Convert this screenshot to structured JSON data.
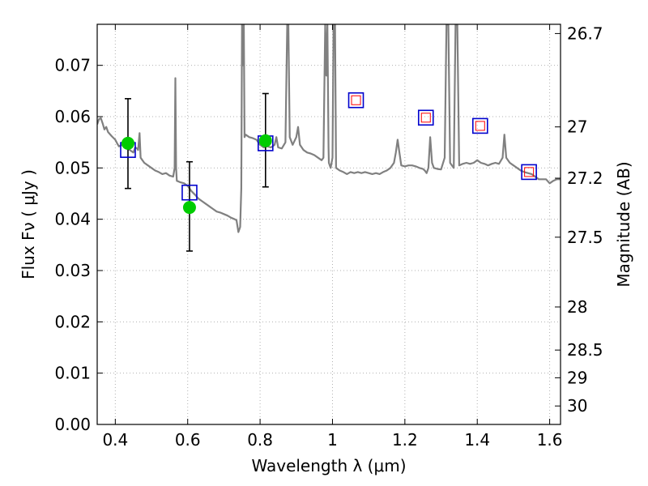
{
  "chart_data": {
    "type": "line",
    "xlabel": "Wavelength  λ (μm)",
    "ylabel": "Flux  Fν  ( μJy )",
    "ylabel_right": "Magnitude (AB)",
    "xlim": [
      0.35,
      1.63
    ],
    "ylim": [
      0,
      0.078
    ],
    "grid": true,
    "x_ticks": [
      0.4,
      0.6,
      0.8,
      1.0,
      1.2,
      1.4,
      1.6
    ],
    "x_tick_labels": [
      "0.4",
      "0.6",
      "0.8",
      "1",
      "1.2",
      "1.4",
      "1.6"
    ],
    "y_ticks": [
      0,
      0.01,
      0.02,
      0.03,
      0.04,
      0.05,
      0.06,
      0.07
    ],
    "y_tick_labels": [
      "0.00",
      "0.01",
      "0.02",
      "0.03",
      "0.04",
      "0.05",
      "0.06",
      "0.07"
    ],
    "mag_ticks": [
      {
        "label": "26.7",
        "flux": 0.0762
      },
      {
        "label": "27",
        "flux": 0.058
      },
      {
        "label": "27.2",
        "flux": 0.048
      },
      {
        "label": "27.5",
        "flux": 0.0365
      },
      {
        "label": "28",
        "flux": 0.0229
      },
      {
        "label": "28.5",
        "flux": 0.0145
      },
      {
        "label": "29",
        "flux": 0.0091
      },
      {
        "label": "30",
        "flux": 0.0036
      }
    ],
    "colors": {
      "sed": "#808080",
      "model_box": "#0000cc",
      "inner_box": "#ff0000",
      "observed": "#00cc00",
      "errorbar": "#000000",
      "grid": "#b0b0b0"
    },
    "series": [
      {
        "kind": "sed_spectrum",
        "points": [
          [
            0.35,
            0.0585
          ],
          [
            0.355,
            0.0595
          ],
          [
            0.36,
            0.0597
          ],
          [
            0.365,
            0.0587
          ],
          [
            0.37,
            0.0575
          ],
          [
            0.375,
            0.058
          ],
          [
            0.38,
            0.057
          ],
          [
            0.39,
            0.0562
          ],
          [
            0.4,
            0.0555
          ],
          [
            0.405,
            0.0548
          ],
          [
            0.41,
            0.0542
          ],
          [
            0.42,
            0.0545
          ],
          [
            0.43,
            0.054
          ],
          [
            0.44,
            0.0535
          ],
          [
            0.45,
            0.053
          ],
          [
            0.455,
            0.054
          ],
          [
            0.46,
            0.0538
          ],
          [
            0.463,
            0.0535
          ],
          [
            0.467,
            0.0568
          ],
          [
            0.47,
            0.052
          ],
          [
            0.48,
            0.051
          ],
          [
            0.49,
            0.0505
          ],
          [
            0.5,
            0.05
          ],
          [
            0.51,
            0.0495
          ],
          [
            0.52,
            0.0492
          ],
          [
            0.53,
            0.0488
          ],
          [
            0.54,
            0.049
          ],
          [
            0.55,
            0.0485
          ],
          [
            0.56,
            0.0483
          ],
          [
            0.564,
            0.05
          ],
          [
            0.566,
            0.0675
          ],
          [
            0.568,
            0.05
          ],
          [
            0.57,
            0.0475
          ],
          [
            0.58,
            0.0472
          ],
          [
            0.59,
            0.047
          ],
          [
            0.6,
            0.0465
          ],
          [
            0.61,
            0.0455
          ],
          [
            0.62,
            0.0448
          ],
          [
            0.63,
            0.044
          ],
          [
            0.64,
            0.0435
          ],
          [
            0.65,
            0.043
          ],
          [
            0.66,
            0.0425
          ],
          [
            0.67,
            0.042
          ],
          [
            0.68,
            0.0415
          ],
          [
            0.69,
            0.0413
          ],
          [
            0.7,
            0.041
          ],
          [
            0.71,
            0.0407
          ],
          [
            0.72,
            0.0403
          ],
          [
            0.73,
            0.04
          ],
          [
            0.735,
            0.0398
          ],
          [
            0.74,
            0.0375
          ],
          [
            0.745,
            0.0385
          ],
          [
            0.748,
            0.046
          ],
          [
            0.75,
            0.078
          ],
          [
            0.752,
            0.07
          ],
          [
            0.755,
            0.078
          ],
          [
            0.757,
            0.056
          ],
          [
            0.76,
            0.0565
          ],
          [
            0.77,
            0.056
          ],
          [
            0.78,
            0.0558
          ],
          [
            0.79,
            0.0555
          ],
          [
            0.8,
            0.0545
          ],
          [
            0.81,
            0.054
          ],
          [
            0.82,
            0.0542
          ],
          [
            0.83,
            0.054
          ],
          [
            0.84,
            0.0545
          ],
          [
            0.845,
            0.056
          ],
          [
            0.85,
            0.054
          ],
          [
            0.86,
            0.0538
          ],
          [
            0.87,
            0.055
          ],
          [
            0.875,
            0.078
          ],
          [
            0.878,
            0.078
          ],
          [
            0.882,
            0.056
          ],
          [
            0.89,
            0.0545
          ],
          [
            0.9,
            0.056
          ],
          [
            0.905,
            0.058
          ],
          [
            0.91,
            0.0545
          ],
          [
            0.92,
            0.0535
          ],
          [
            0.93,
            0.053
          ],
          [
            0.94,
            0.0528
          ],
          [
            0.95,
            0.0525
          ],
          [
            0.96,
            0.052
          ],
          [
            0.97,
            0.0515
          ],
          [
            0.975,
            0.052
          ],
          [
            0.98,
            0.078
          ],
          [
            0.983,
            0.068
          ],
          [
            0.986,
            0.078
          ],
          [
            0.989,
            0.054
          ],
          [
            0.99,
            0.051
          ],
          [
            0.995,
            0.05
          ],
          [
            1.0,
            0.052
          ],
          [
            1.003,
            0.078
          ],
          [
            1.007,
            0.078
          ],
          [
            1.01,
            0.05
          ],
          [
            1.02,
            0.0495
          ],
          [
            1.03,
            0.0492
          ],
          [
            1.04,
            0.0488
          ],
          [
            1.05,
            0.0492
          ],
          [
            1.06,
            0.049
          ],
          [
            1.07,
            0.0492
          ],
          [
            1.08,
            0.049
          ],
          [
            1.09,
            0.0492
          ],
          [
            1.1,
            0.049
          ],
          [
            1.11,
            0.0488
          ],
          [
            1.12,
            0.049
          ],
          [
            1.13,
            0.0488
          ],
          [
            1.14,
            0.0492
          ],
          [
            1.15,
            0.0495
          ],
          [
            1.16,
            0.05
          ],
          [
            1.17,
            0.051
          ],
          [
            1.175,
            0.053
          ],
          [
            1.18,
            0.0555
          ],
          [
            1.185,
            0.053
          ],
          [
            1.19,
            0.0505
          ],
          [
            1.2,
            0.0503
          ],
          [
            1.21,
            0.0505
          ],
          [
            1.22,
            0.0505
          ],
          [
            1.23,
            0.0503
          ],
          [
            1.24,
            0.05
          ],
          [
            1.25,
            0.0498
          ],
          [
            1.255,
            0.0495
          ],
          [
            1.26,
            0.049
          ],
          [
            1.265,
            0.05
          ],
          [
            1.27,
            0.056
          ],
          [
            1.275,
            0.051
          ],
          [
            1.28,
            0.05
          ],
          [
            1.29,
            0.0498
          ],
          [
            1.3,
            0.0497
          ],
          [
            1.31,
            0.052
          ],
          [
            1.315,
            0.078
          ],
          [
            1.32,
            0.078
          ],
          [
            1.325,
            0.051
          ],
          [
            1.33,
            0.0505
          ],
          [
            1.335,
            0.05
          ],
          [
            1.34,
            0.078
          ],
          [
            1.345,
            0.078
          ],
          [
            1.35,
            0.0505
          ],
          [
            1.36,
            0.0508
          ],
          [
            1.37,
            0.051
          ],
          [
            1.38,
            0.0508
          ],
          [
            1.39,
            0.051
          ],
          [
            1.4,
            0.0515
          ],
          [
            1.41,
            0.051
          ],
          [
            1.42,
            0.0508
          ],
          [
            1.43,
            0.0505
          ],
          [
            1.44,
            0.0508
          ],
          [
            1.45,
            0.051
          ],
          [
            1.46,
            0.0508
          ],
          [
            1.47,
            0.052
          ],
          [
            1.475,
            0.0565
          ],
          [
            1.48,
            0.052
          ],
          [
            1.49,
            0.051
          ],
          [
            1.5,
            0.0505
          ],
          [
            1.51,
            0.05
          ],
          [
            1.52,
            0.0495
          ],
          [
            1.53,
            0.0492
          ],
          [
            1.54,
            0.049
          ],
          [
            1.55,
            0.0488
          ],
          [
            1.56,
            0.0483
          ],
          [
            1.57,
            0.0478
          ],
          [
            1.58,
            0.0478
          ],
          [
            1.59,
            0.0478
          ],
          [
            1.6,
            0.047
          ],
          [
            1.61,
            0.0475
          ],
          [
            1.62,
            0.0478
          ],
          [
            1.63,
            0.0478
          ]
        ]
      },
      {
        "kind": "model_photometry",
        "points": [
          [
            0.435,
            0.0535
          ],
          [
            0.605,
            0.0452
          ],
          [
            0.815,
            0.0548
          ],
          [
            1.065,
            0.0632
          ],
          [
            1.258,
            0.0598
          ],
          [
            1.408,
            0.0582
          ],
          [
            1.543,
            0.0492
          ]
        ]
      },
      {
        "kind": "model_photometry_inner",
        "points": [
          [
            1.065,
            0.0632
          ],
          [
            1.258,
            0.0598
          ],
          [
            1.408,
            0.0582
          ],
          [
            1.543,
            0.0492
          ]
        ]
      },
      {
        "kind": "observed_photometry",
        "points": [
          {
            "x": 0.435,
            "y": 0.0548,
            "err_low": 0.046,
            "err_high": 0.0635
          },
          {
            "x": 0.605,
            "y": 0.0423,
            "err_low": 0.0338,
            "err_high": 0.0512
          },
          {
            "x": 0.815,
            "y": 0.0553,
            "err_low": 0.0463,
            "err_high": 0.0645
          }
        ]
      }
    ]
  }
}
